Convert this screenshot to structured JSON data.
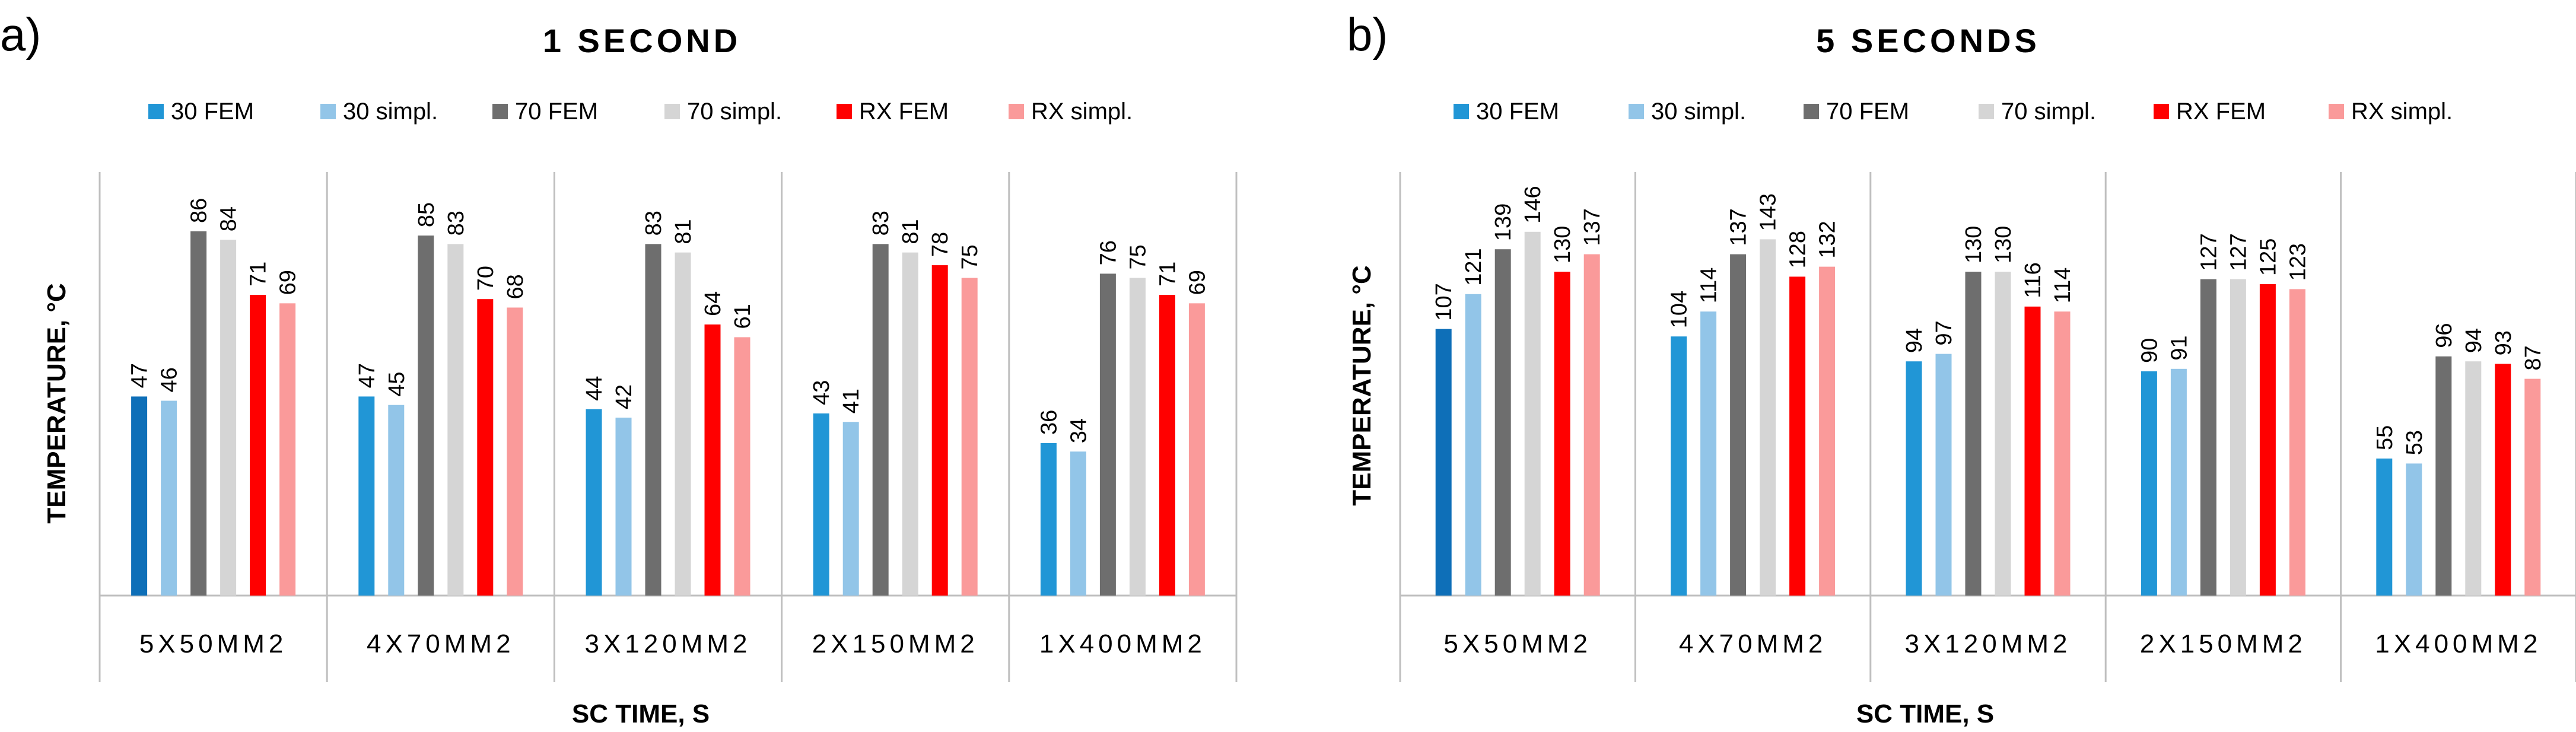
{
  "colors": {
    "30 FEM": "#2196D6",
    "30 simpl.": "#92C5E8",
    "70 FEM": "#6E6E6E",
    "70 simpl.": "#D5D5D5",
    "RX FEM": "#FF0000",
    "RX simpl.": "#FA9A9A",
    "first_bar_dark": "#0E6FB8",
    "grid": "#BFBFBF",
    "text": "#000000"
  },
  "chart_data": [
    {
      "type": "bar",
      "panel_label": "a)",
      "title": "1 SECOND",
      "xlabel": "SC TIME, S",
      "ylabel": "TEMPERATURE, °C",
      "categories": [
        "5X50MM2",
        "4X70MM2",
        "3X120MM2",
        "2X150MM2",
        "1X400MM2"
      ],
      "series": [
        {
          "name": "30 FEM",
          "values": [
            47,
            47,
            44,
            43,
            36
          ]
        },
        {
          "name": "30 simpl.",
          "values": [
            46,
            45,
            42,
            41,
            34
          ]
        },
        {
          "name": "70 FEM",
          "values": [
            86,
            85,
            83,
            83,
            76
          ]
        },
        {
          "name": "70 simpl.",
          "values": [
            84,
            83,
            81,
            81,
            75
          ]
        },
        {
          "name": "RX FEM",
          "values": [
            71,
            70,
            64,
            78,
            71
          ]
        },
        {
          "name": "RX simpl.",
          "values": [
            69,
            68,
            61,
            75,
            69
          ]
        }
      ],
      "ylim": [
        0,
        100
      ],
      "legend": "top",
      "grid": false
    },
    {
      "type": "bar",
      "panel_label": "b)",
      "title": "5 SECONDS",
      "xlabel": "SC TIME, S",
      "ylabel": "TEMPERATURE, °C",
      "categories": [
        "5X50MM2",
        "4X70MM2",
        "3X120MM2",
        "2X150MM2",
        "1X400MM2"
      ],
      "series": [
        {
          "name": "30 FEM",
          "values": [
            107,
            104,
            94,
            90,
            55
          ]
        },
        {
          "name": "30 simpl.",
          "values": [
            121,
            114,
            97,
            91,
            53
          ]
        },
        {
          "name": "70 FEM",
          "values": [
            139,
            137,
            130,
            127,
            96
          ]
        },
        {
          "name": "70 simpl.",
          "values": [
            146,
            143,
            130,
            127,
            94
          ]
        },
        {
          "name": "RX FEM",
          "values": [
            130,
            128,
            116,
            125,
            93
          ]
        },
        {
          "name": "RX simpl.",
          "values": [
            137,
            132,
            114,
            123,
            87
          ]
        }
      ],
      "ylim": [
        0,
        170
      ],
      "legend": "top",
      "grid": false
    }
  ]
}
